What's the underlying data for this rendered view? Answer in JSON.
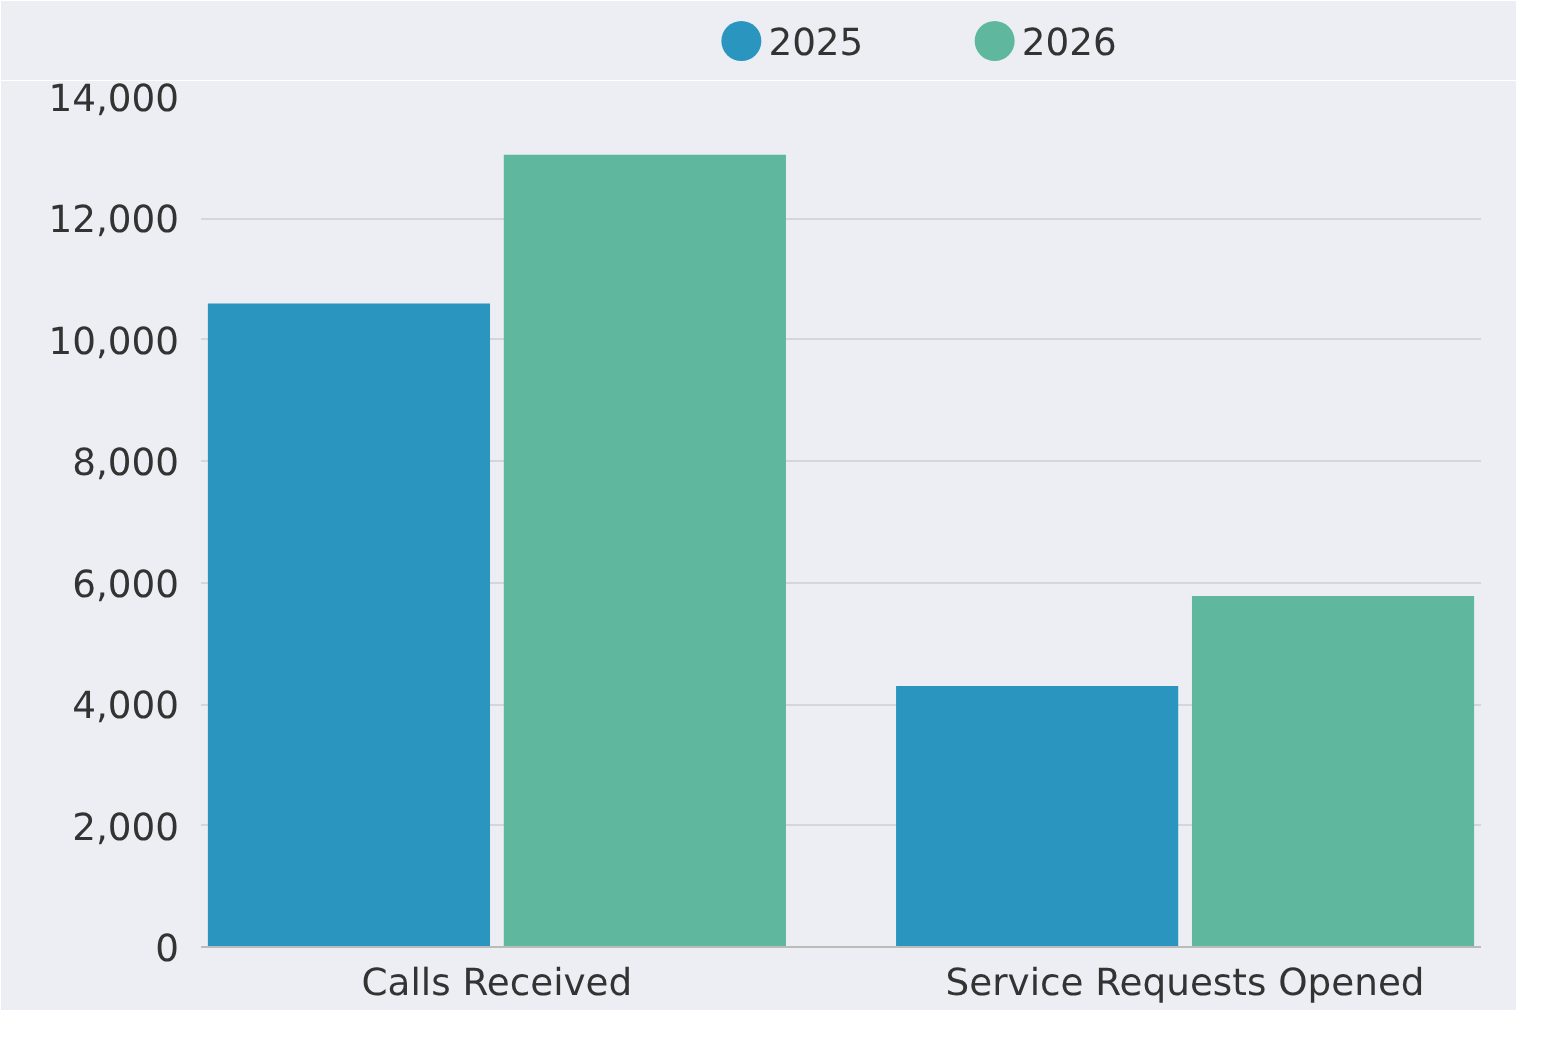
{
  "chart_data": {
    "type": "bar",
    "categories": [
      "Calls Received",
      "Service Requests Opened"
    ],
    "series": [
      {
        "name": "2025",
        "color": "#2a96bf",
        "values": [
          10600,
          4300
        ]
      },
      {
        "name": "2026",
        "color": "#5fb89e",
        "values": [
          13050,
          5780
        ]
      }
    ],
    "ylim": [
      0,
      14000
    ],
    "yticks": [
      {
        "value": 0,
        "label": "0"
      },
      {
        "value": 2000,
        "label": "2,000"
      },
      {
        "value": 4000,
        "label": "4,000"
      },
      {
        "value": 6000,
        "label": "6,000"
      },
      {
        "value": 8000,
        "label": "8,000"
      },
      {
        "value": 10000,
        "label": "10,000"
      },
      {
        "value": 12000,
        "label": "12,000"
      },
      {
        "value": 14000,
        "label": "14,000"
      }
    ],
    "grid": "y",
    "legend": "top"
  }
}
